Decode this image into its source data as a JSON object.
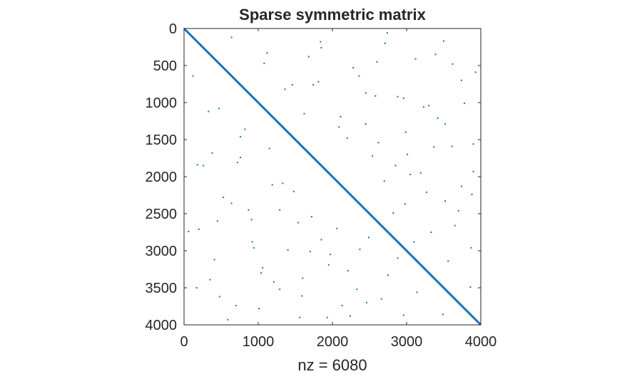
{
  "chart_data": {
    "type": "scatter",
    "title": "Sparse symmetric matrix",
    "xlabel": "nz = 6080",
    "ylabel": "",
    "xlim": [
      0,
      4000
    ],
    "ylim": [
      0,
      4000
    ],
    "y_reversed": true,
    "grid": false,
    "matrix_size": 4000,
    "nonzeros": 6080,
    "xticks": [
      0,
      1000,
      2000,
      3000,
      4000
    ],
    "xtick_labels": [
      "0",
      "1000",
      "2000",
      "3000",
      "4000"
    ],
    "yticks": [
      0,
      500,
      1000,
      1500,
      2000,
      2500,
      3000,
      3500,
      4000
    ],
    "ytick_labels": [
      "0",
      "500",
      "1000",
      "1500",
      "2000",
      "2500",
      "3000",
      "3500",
      "4000"
    ],
    "marker_color": "#1f6fb5",
    "series": [
      {
        "values": [
          [
            120,
            640
          ],
          [
            640,
            120
          ],
          [
            260,
            1850
          ],
          [
            1850,
            260
          ],
          [
            410,
            3120
          ],
          [
            3120,
            410
          ],
          [
            530,
            2280
          ],
          [
            2280,
            530
          ],
          [
            700,
            3740
          ],
          [
            3740,
            700
          ],
          [
            820,
            1360
          ],
          [
            1360,
            820
          ],
          [
            940,
            2960
          ],
          [
            2960,
            940
          ],
          [
            1080,
            470
          ],
          [
            470,
            1080
          ],
          [
            1210,
            3420
          ],
          [
            3420,
            1210
          ],
          [
            1330,
            2090
          ],
          [
            2090,
            1330
          ],
          [
            1460,
            760
          ],
          [
            760,
            1460
          ],
          [
            1590,
            3610
          ],
          [
            3610,
            1590
          ],
          [
            1720,
            2540
          ],
          [
            2540,
            1720
          ],
          [
            1840,
            180
          ],
          [
            180,
            1840
          ],
          [
            1970,
            3050
          ],
          [
            3050,
            1970
          ],
          [
            2110,
            1190
          ],
          [
            1190,
            2110
          ],
          [
            2240,
            3880
          ],
          [
            3880,
            2240
          ],
          [
            2360,
            640
          ],
          [
            640,
            2360
          ],
          [
            2490,
            2820
          ],
          [
            2820,
            2490
          ],
          [
            2620,
            1540
          ],
          [
            1540,
            2620
          ],
          [
            2750,
            3330
          ],
          [
            3330,
            2750
          ],
          [
            2880,
            920
          ],
          [
            920,
            2880
          ],
          [
            3010,
            1700
          ],
          [
            1700,
            3010
          ],
          [
            3140,
            3560
          ],
          [
            3560,
            3140
          ],
          [
            3270,
            2210
          ],
          [
            2210,
            3270
          ],
          [
            3390,
            350
          ],
          [
            350,
            3390
          ],
          [
            3520,
            1290
          ],
          [
            1290,
            3520
          ],
          [
            3650,
            2660
          ],
          [
            2660,
            3650
          ],
          [
            3780,
            1010
          ],
          [
            1010,
            3780
          ],
          [
            3900,
            1930
          ],
          [
            1930,
            3900
          ],
          [
            60,
            2740
          ],
          [
            2740,
            60
          ],
          [
            330,
            1120
          ],
          [
            1120,
            330
          ],
          [
            590,
            3930
          ],
          [
            3930,
            590
          ],
          [
            870,
            2450
          ],
          [
            2450,
            870
          ],
          [
            1150,
            1620
          ],
          [
            1620,
            1150
          ],
          [
            1400,
            2990
          ],
          [
            2990,
            1400
          ],
          [
            1680,
            380
          ],
          [
            380,
            1680
          ],
          [
            1950,
            3190
          ],
          [
            3190,
            1950
          ],
          [
            2200,
            1480
          ],
          [
            1480,
            2200
          ],
          [
            2460,
            3700
          ],
          [
            3700,
            2460
          ],
          [
            2710,
            200
          ],
          [
            200,
            2710
          ],
          [
            2980,
            2370
          ],
          [
            2370,
            2980
          ],
          [
            3230,
            1060
          ],
          [
            1060,
            3230
          ],
          [
            3490,
            3860
          ],
          [
            3860,
            3490
          ],
          [
            3740,
            2130
          ],
          [
            2130,
            3740
          ],
          [
            170,
            3500
          ],
          [
            3500,
            170
          ],
          [
            450,
            2600
          ],
          [
            2600,
            450
          ],
          [
            760,
            1740
          ],
          [
            1740,
            760
          ],
          [
            1040,
            3300
          ],
          [
            3300,
            1040
          ],
          [
            1290,
            2450
          ],
          [
            2450,
            1290
          ],
          [
            1560,
            3900
          ],
          [
            3900,
            1560
          ],
          [
            1810,
            720
          ],
          [
            720,
            1810
          ],
          [
            2060,
            2700
          ],
          [
            2700,
            2060
          ],
          [
            2330,
            3520
          ],
          [
            3520,
            2330
          ],
          [
            2580,
            910
          ],
          [
            910,
            2580
          ],
          [
            2850,
            1850
          ],
          [
            1850,
            2850
          ],
          [
            3100,
            2880
          ],
          [
            2880,
            3100
          ],
          [
            3370,
            1600
          ],
          [
            1600,
            3370
          ],
          [
            3620,
            480
          ],
          [
            480,
            3620
          ],
          [
            3870,
            2960
          ],
          [
            2960,
            3870
          ]
        ]
      }
    ]
  }
}
